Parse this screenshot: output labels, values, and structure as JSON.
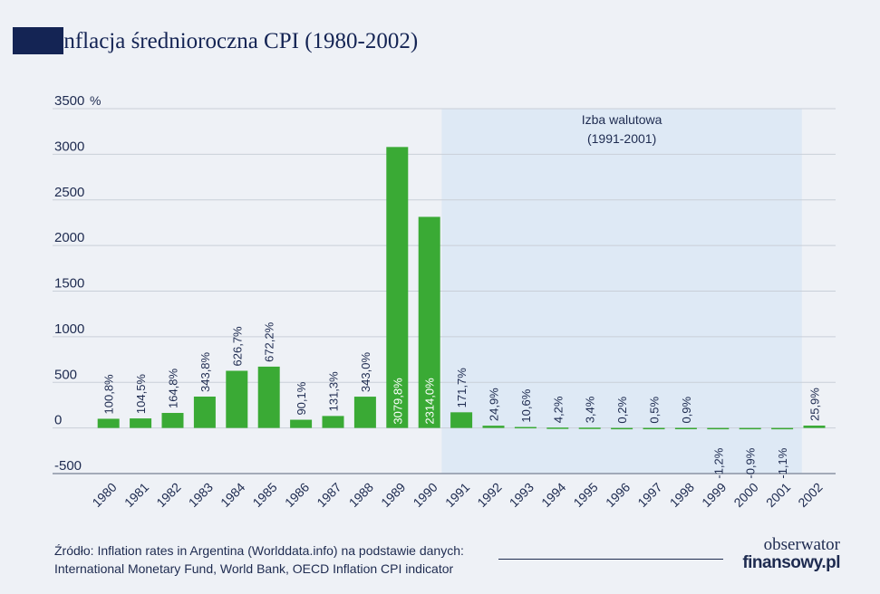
{
  "title": "Inflacja średnioroczna CPI (1980-2002)",
  "colors": {
    "bar": "#3aaa35",
    "title": "#142454",
    "band": "#dbe8f5",
    "grid": "#c9cfd8",
    "text": "#1e2b50"
  },
  "chart_data": {
    "type": "bar",
    "categories": [
      "1980",
      "1981",
      "1982",
      "1983",
      "1984",
      "1985",
      "1986",
      "1987",
      "1988",
      "1989",
      "1990",
      "1991",
      "1992",
      "1993",
      "1994",
      "1995",
      "1996",
      "1997",
      "1998",
      "1999",
      "2000",
      "2001",
      "2002"
    ],
    "values": [
      100.8,
      104.5,
      164.8,
      343.8,
      626.7,
      672.2,
      90.1,
      131.3,
      343.0,
      3079.8,
      2314.0,
      171.7,
      24.9,
      10.6,
      4.2,
      3.4,
      0.2,
      0.5,
      0.9,
      -1.2,
      -0.9,
      -1.1,
      25.9
    ],
    "data_labels": [
      "100,8%",
      "104,5%",
      "164,8%",
      "343,8%",
      "626,7%",
      "672,2%",
      "90,1%",
      "131,3%",
      "343,0%",
      "3079,8%",
      "2314,0%",
      "171,7%",
      "24,9%",
      "10,6%",
      "4,2%",
      "3,4%",
      "0,2%",
      "0,5%",
      "0,9%",
      "-1,2%",
      "-0,9%",
      "-1,1%",
      "25,9%"
    ],
    "yticks": [
      {
        "value": 3500,
        "label": "3500"
      },
      {
        "value": 3000,
        "label": "3000"
      },
      {
        "value": 2500,
        "label": "2500"
      },
      {
        "value": 2000,
        "label": "2000"
      },
      {
        "value": 1500,
        "label": "1500"
      },
      {
        "value": 1000,
        "label": "1000"
      },
      {
        "value": 500,
        "label": "500"
      },
      {
        "value": 0,
        "label": "0"
      },
      {
        "value": -500,
        "label": "-500"
      }
    ],
    "ylim": [
      -500,
      3500
    ],
    "y_unit": "%",
    "grid": true,
    "highlight": {
      "from": "1991",
      "to": "2001",
      "label_line1": "Izba walutowa",
      "label_line2": "(1991-2001)"
    }
  },
  "source": {
    "line1": "Źródło: Inflation rates in Argentina (Worlddata.info) na podstawie danych:",
    "line2": "International Monetary Fund, World Bank, OECD Inflation CPI indicator"
  },
  "logo": {
    "line1": "obserwator",
    "line2": "finansowy.pl"
  }
}
